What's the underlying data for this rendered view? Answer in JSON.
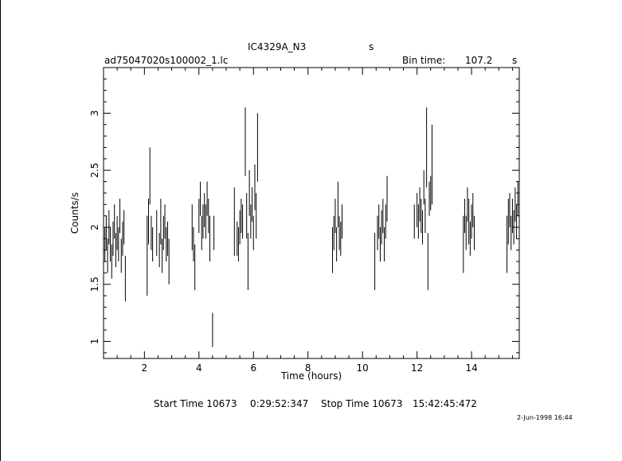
{
  "header": {
    "object": "IC4329A_N3",
    "object_unit": "s",
    "filename": "ad75047020s100002_1.lc",
    "bin_label": "Bin time:",
    "bin_value": "107.2",
    "bin_unit": "s"
  },
  "footer": {
    "start_label": "Start Time 10673",
    "start_time": "0:29:52:347",
    "stop_label": "Stop Time 10673",
    "stop_time": "15:42:45:472",
    "plot_date": "2-Jun-1998 16:44"
  },
  "chart_data": {
    "type": "scatter",
    "xlabel": "Time (hours)",
    "ylabel": "Counts/s",
    "xlim": [
      0.5,
      15.75
    ],
    "ylim": [
      0.85,
      3.4
    ],
    "xticks": [
      2,
      4,
      6,
      8,
      10,
      12,
      14
    ],
    "yticks": [
      1,
      1.5,
      2,
      2.5,
      3
    ],
    "grid": false,
    "series": [
      {
        "style": "error-bars",
        "points": [
          [
            0.55,
            1.85,
            0.15
          ],
          [
            0.6,
            1.95,
            0.15
          ],
          [
            0.65,
            1.75,
            0.15
          ],
          [
            0.7,
            2.0,
            0.15
          ],
          [
            0.75,
            1.85,
            0.15
          ],
          [
            0.8,
            1.7,
            0.15
          ],
          [
            0.85,
            1.9,
            0.15
          ],
          [
            0.9,
            2.05,
            0.15
          ],
          [
            0.95,
            1.8,
            0.15
          ],
          [
            1.0,
            1.95,
            0.15
          ],
          [
            1.05,
            1.85,
            0.15
          ],
          [
            1.1,
            2.1,
            0.15
          ],
          [
            1.15,
            1.75,
            0.15
          ],
          [
            1.2,
            1.9,
            0.15
          ],
          [
            1.25,
            2.0,
            0.15
          ],
          [
            1.3,
            1.55,
            0.2
          ],
          [
            2.1,
            1.75,
            0.35
          ],
          [
            2.15,
            2.05,
            0.2
          ],
          [
            2.2,
            2.45,
            0.25
          ],
          [
            2.25,
            1.95,
            0.15
          ],
          [
            2.3,
            1.85,
            0.15
          ],
          [
            2.45,
            1.95,
            0.2
          ],
          [
            2.55,
            1.8,
            0.15
          ],
          [
            2.6,
            2.05,
            0.2
          ],
          [
            2.65,
            1.75,
            0.15
          ],
          [
            2.7,
            1.95,
            0.15
          ],
          [
            2.75,
            2.05,
            0.15
          ],
          [
            2.8,
            1.85,
            0.15
          ],
          [
            2.85,
            1.9,
            0.15
          ],
          [
            2.9,
            1.7,
            0.2
          ],
          [
            3.75,
            2.0,
            0.2
          ],
          [
            3.8,
            1.85,
            0.15
          ],
          [
            3.85,
            1.65,
            0.2
          ],
          [
            4.0,
            2.1,
            0.15
          ],
          [
            4.05,
            2.25,
            0.15
          ],
          [
            4.1,
            1.95,
            0.15
          ],
          [
            4.15,
            2.05,
            0.15
          ],
          [
            4.2,
            2.15,
            0.15
          ],
          [
            4.25,
            2.05,
            0.15
          ],
          [
            4.3,
            2.25,
            0.15
          ],
          [
            4.35,
            2.1,
            0.15
          ],
          [
            4.4,
            1.9,
            0.2
          ],
          [
            4.5,
            1.1,
            0.15
          ],
          [
            4.55,
            1.95,
            0.15
          ],
          [
            5.3,
            2.05,
            0.3
          ],
          [
            5.4,
            1.9,
            0.15
          ],
          [
            5.45,
            1.85,
            0.15
          ],
          [
            5.5,
            2.0,
            0.15
          ],
          [
            5.55,
            2.1,
            0.15
          ],
          [
            5.6,
            2.05,
            0.15
          ],
          [
            5.7,
            2.75,
            0.3
          ],
          [
            5.75,
            2.1,
            0.2
          ],
          [
            5.8,
            1.7,
            0.25
          ],
          [
            5.85,
            2.3,
            0.2
          ],
          [
            5.9,
            2.05,
            0.15
          ],
          [
            5.95,
            2.2,
            0.15
          ],
          [
            6.0,
            1.95,
            0.15
          ],
          [
            6.05,
            2.35,
            0.2
          ],
          [
            6.1,
            2.1,
            0.2
          ],
          [
            6.15,
            2.7,
            0.3
          ],
          [
            8.9,
            1.8,
            0.2
          ],
          [
            8.95,
            1.95,
            0.15
          ],
          [
            9.0,
            2.1,
            0.15
          ],
          [
            9.05,
            1.85,
            0.15
          ],
          [
            9.1,
            2.2,
            0.2
          ],
          [
            9.15,
            1.95,
            0.15
          ],
          [
            9.2,
            1.9,
            0.15
          ],
          [
            9.25,
            2.05,
            0.15
          ],
          [
            10.45,
            1.7,
            0.25
          ],
          [
            10.55,
            1.95,
            0.15
          ],
          [
            10.6,
            2.05,
            0.15
          ],
          [
            10.65,
            1.85,
            0.15
          ],
          [
            10.7,
            2.0,
            0.15
          ],
          [
            10.75,
            2.1,
            0.15
          ],
          [
            10.8,
            1.85,
            0.15
          ],
          [
            10.85,
            2.05,
            0.15
          ],
          [
            10.9,
            2.25,
            0.2
          ],
          [
            11.9,
            2.05,
            0.15
          ],
          [
            12.0,
            2.15,
            0.15
          ],
          [
            12.05,
            2.05,
            0.15
          ],
          [
            12.1,
            2.2,
            0.15
          ],
          [
            12.15,
            2.1,
            0.15
          ],
          [
            12.2,
            2.0,
            0.15
          ],
          [
            12.25,
            2.35,
            0.15
          ],
          [
            12.3,
            2.1,
            0.15
          ],
          [
            12.35,
            2.7,
            0.35
          ],
          [
            12.4,
            1.7,
            0.25
          ],
          [
            12.45,
            2.25,
            0.15
          ],
          [
            12.5,
            2.3,
            0.15
          ],
          [
            12.55,
            2.55,
            0.35
          ],
          [
            13.7,
            1.85,
            0.25
          ],
          [
            13.75,
            2.1,
            0.15
          ],
          [
            13.8,
            1.95,
            0.15
          ],
          [
            13.85,
            2.2,
            0.15
          ],
          [
            13.9,
            2.05,
            0.2
          ],
          [
            13.95,
            1.9,
            0.15
          ],
          [
            14.0,
            2.05,
            0.15
          ],
          [
            14.05,
            2.15,
            0.15
          ],
          [
            14.1,
            1.95,
            0.15
          ],
          [
            15.3,
            1.85,
            0.25
          ],
          [
            15.35,
            2.05,
            0.2
          ],
          [
            15.4,
            2.15,
            0.15
          ],
          [
            15.45,
            1.95,
            0.15
          ],
          [
            15.5,
            2.1,
            0.15
          ],
          [
            15.55,
            2.0,
            0.15
          ],
          [
            15.6,
            2.2,
            0.15
          ],
          [
            15.65,
            2.05,
            0.15
          ],
          [
            15.7,
            2.25,
            0.15
          ]
        ]
      }
    ]
  }
}
